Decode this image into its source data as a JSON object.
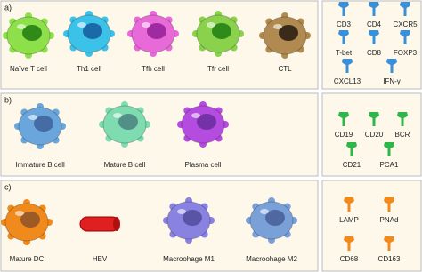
{
  "panels": [
    {
      "label": "a)",
      "cells": [
        "Naïve T cell",
        "Th1 cell",
        "Tfh cell",
        "Tfr cell",
        "CTL"
      ],
      "markers": [
        "CD3",
        "CD4",
        "CXCR5",
        "T-bet",
        "CD8",
        "FOXP3",
        "CXCL13",
        "IFN-γ"
      ]
    },
    {
      "label": "b)",
      "cells": [
        "Immature B cell",
        "Mature B cell",
        "Plasma cell"
      ],
      "markers": [
        "CD19",
        "CD20",
        "BCR",
        "CD21",
        "PCA1"
      ]
    },
    {
      "label": "c)",
      "cells": [
        "Mature DC",
        "HEV",
        "Macroohage M1",
        "Macroohage M2"
      ],
      "markers": [
        "LAMP",
        "PNAd",
        "CD68",
        "CD163"
      ]
    }
  ]
}
